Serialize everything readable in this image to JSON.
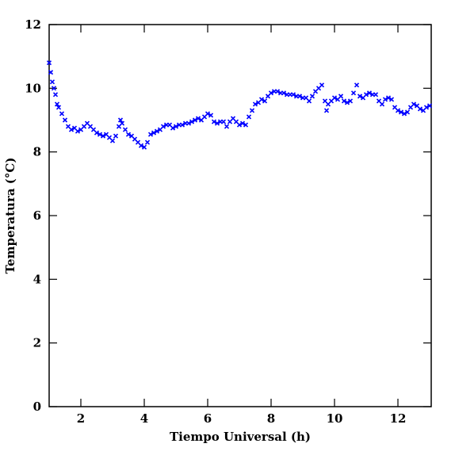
{
  "chart_data": {
    "type": "scatter",
    "xlabel": "Tiempo Universal (h)",
    "ylabel": "Temperatura (°C)",
    "color": "#0000ff",
    "xlim": [
      1,
      13.05
    ],
    "ylim": [
      0,
      12
    ],
    "xticks": [
      2,
      4,
      6,
      8,
      10,
      12
    ],
    "yticks": [
      0,
      2,
      4,
      6,
      8,
      10,
      12
    ],
    "x": [
      1.0,
      1.05,
      1.1,
      1.15,
      1.2,
      1.25,
      1.3,
      1.4,
      1.5,
      1.6,
      1.7,
      1.8,
      1.9,
      2.0,
      2.1,
      2.2,
      2.3,
      2.4,
      2.5,
      2.6,
      2.7,
      2.8,
      2.9,
      3.0,
      3.1,
      3.2,
      3.25,
      3.3,
      3.4,
      3.5,
      3.6,
      3.7,
      3.8,
      3.9,
      4.0,
      4.1,
      4.2,
      4.3,
      4.4,
      4.5,
      4.6,
      4.7,
      4.8,
      4.9,
      5.0,
      5.1,
      5.2,
      5.3,
      5.4,
      5.5,
      5.6,
      5.7,
      5.8,
      5.9,
      6.0,
      6.1,
      6.2,
      6.3,
      6.4,
      6.5,
      6.6,
      6.7,
      6.8,
      6.9,
      7.0,
      7.1,
      7.2,
      7.3,
      7.4,
      7.5,
      7.6,
      7.7,
      7.8,
      7.9,
      8.0,
      8.1,
      8.2,
      8.3,
      8.4,
      8.5,
      8.6,
      8.7,
      8.8,
      8.9,
      9.0,
      9.1,
      9.2,
      9.3,
      9.4,
      9.5,
      9.6,
      9.7,
      9.75,
      9.8,
      9.9,
      10.0,
      10.1,
      10.2,
      10.3,
      10.4,
      10.5,
      10.6,
      10.7,
      10.8,
      10.9,
      11.0,
      11.1,
      11.2,
      11.3,
      11.4,
      11.5,
      11.6,
      11.7,
      11.8,
      11.9,
      12.0,
      12.1,
      12.2,
      12.3,
      12.4,
      12.5,
      12.6,
      12.7,
      12.8,
      12.9,
      13.0
    ],
    "y": [
      10.8,
      10.5,
      10.2,
      10.0,
      9.8,
      9.5,
      9.4,
      9.2,
      9.0,
      8.8,
      8.7,
      8.75,
      8.65,
      8.7,
      8.8,
      8.9,
      8.8,
      8.7,
      8.6,
      8.55,
      8.5,
      8.55,
      8.45,
      8.35,
      8.5,
      8.8,
      9.0,
      8.9,
      8.7,
      8.55,
      8.5,
      8.4,
      8.3,
      8.2,
      8.15,
      8.3,
      8.55,
      8.6,
      8.65,
      8.7,
      8.8,
      8.85,
      8.85,
      8.75,
      8.8,
      8.85,
      8.85,
      8.9,
      8.9,
      8.95,
      9.0,
      9.05,
      9.0,
      9.1,
      9.2,
      9.15,
      8.95,
      8.9,
      8.95,
      8.95,
      8.8,
      8.95,
      9.05,
      8.95,
      8.85,
      8.9,
      8.85,
      9.1,
      9.3,
      9.5,
      9.55,
      9.65,
      9.6,
      9.75,
      9.85,
      9.9,
      9.9,
      9.85,
      9.85,
      9.8,
      9.8,
      9.8,
      9.75,
      9.75,
      9.7,
      9.7,
      9.6,
      9.75,
      9.9,
      10.0,
      10.1,
      9.6,
      9.3,
      9.5,
      9.6,
      9.7,
      9.65,
      9.75,
      9.6,
      9.55,
      9.6,
      9.85,
      10.1,
      9.75,
      9.7,
      9.8,
      9.85,
      9.8,
      9.8,
      9.6,
      9.5,
      9.65,
      9.7,
      9.65,
      9.4,
      9.3,
      9.25,
      9.2,
      9.25,
      9.4,
      9.5,
      9.45,
      9.35,
      9.3,
      9.4,
      9.45
    ]
  }
}
